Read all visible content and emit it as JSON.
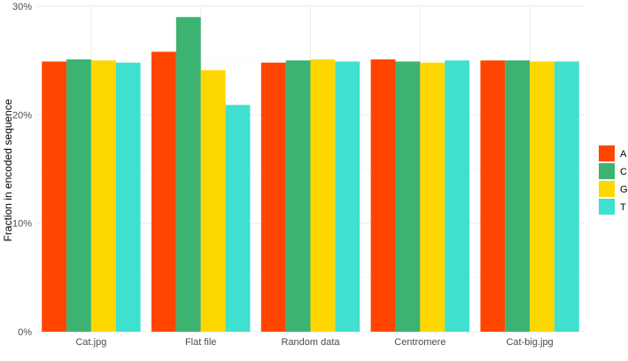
{
  "chart_data": {
    "type": "bar",
    "title": "",
    "xlabel": "",
    "ylabel": "Fraction in encoded sequence",
    "ylim": [
      0,
      30
    ],
    "yticks": [
      0,
      10,
      20,
      30
    ],
    "ytick_labels": [
      "0%",
      "10%",
      "20%",
      "30%"
    ],
    "grid": true,
    "legend": "right",
    "categories": [
      "Cat.jpg",
      "Flat file",
      "Random data",
      "Centromere",
      "Cat-big.jpg"
    ],
    "series": [
      {
        "name": "A",
        "color": "#FF4500",
        "values": [
          24.9,
          25.8,
          24.8,
          25.1,
          25.0
        ]
      },
      {
        "name": "C",
        "color": "#3CB371",
        "values": [
          25.1,
          29.0,
          25.0,
          24.9,
          25.0
        ]
      },
      {
        "name": "G",
        "color": "#FFD700",
        "values": [
          25.0,
          24.1,
          25.1,
          24.8,
          24.9
        ]
      },
      {
        "name": "T",
        "color": "#40E0D0",
        "values": [
          24.8,
          20.9,
          24.9,
          25.0,
          24.9
        ]
      }
    ]
  }
}
